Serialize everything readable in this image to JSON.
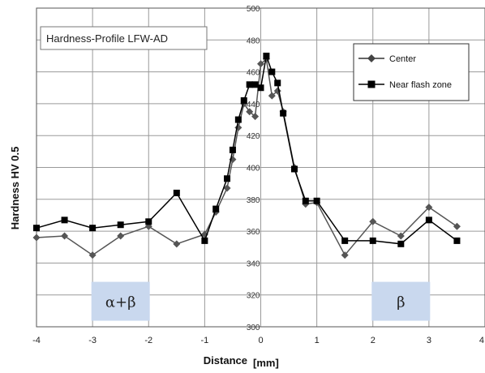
{
  "chart_data": {
    "type": "line",
    "title": "Hardness-Profile LFW-AD",
    "xlabel": "Distance",
    "xunit": "[mm]",
    "ylabel": "Hardness HV 0.5",
    "xlim": [
      -4,
      4
    ],
    "ylim": [
      300,
      500
    ],
    "xticks": [
      -4,
      -3,
      -2,
      -1,
      0,
      1,
      2,
      3,
      4
    ],
    "yticks": [
      300,
      320,
      340,
      360,
      380,
      400,
      420,
      440,
      460,
      480,
      500
    ],
    "grid": true,
    "legend_position": "top-right",
    "series": [
      {
        "name": "Center",
        "marker": "diamond",
        "color": "#555555",
        "points": [
          [
            -4,
            356
          ],
          [
            -3.5,
            357
          ],
          [
            -3,
            345
          ],
          [
            -2.5,
            357
          ],
          [
            -2,
            363
          ],
          [
            -1.5,
            352
          ],
          [
            -1,
            358
          ],
          [
            -0.8,
            372
          ],
          [
            -0.6,
            387
          ],
          [
            -0.5,
            405
          ],
          [
            -0.4,
            425
          ],
          [
            -0.3,
            440
          ],
          [
            -0.2,
            435
          ],
          [
            -0.1,
            432
          ],
          [
            0,
            465
          ],
          [
            0.1,
            468
          ],
          [
            0.2,
            445
          ],
          [
            0.3,
            448
          ],
          [
            0.4,
            435
          ],
          [
            0.6,
            400
          ],
          [
            0.8,
            377
          ],
          [
            1,
            378
          ],
          [
            1.5,
            345
          ],
          [
            2,
            366
          ],
          [
            2.5,
            357
          ],
          [
            3,
            375
          ],
          [
            3.5,
            363
          ]
        ]
      },
      {
        "name": "Near flash zone",
        "marker": "square",
        "color": "#000000",
        "points": [
          [
            -4,
            362
          ],
          [
            -3.5,
            367
          ],
          [
            -3,
            362
          ],
          [
            -2.5,
            364
          ],
          [
            -2,
            366
          ],
          [
            -1.5,
            384
          ],
          [
            -1,
            354
          ],
          [
            -0.8,
            374
          ],
          [
            -0.6,
            393
          ],
          [
            -0.5,
            411
          ],
          [
            -0.4,
            430
          ],
          [
            -0.3,
            442
          ],
          [
            -0.2,
            452
          ],
          [
            -0.1,
            452
          ],
          [
            0,
            450
          ],
          [
            0.1,
            470
          ],
          [
            0.2,
            460
          ],
          [
            0.3,
            453
          ],
          [
            0.4,
            434
          ],
          [
            0.6,
            399
          ],
          [
            0.8,
            379
          ],
          [
            1,
            379
          ],
          [
            1.5,
            354
          ],
          [
            2,
            354
          ],
          [
            2.5,
            352
          ],
          [
            3,
            367
          ],
          [
            3.5,
            354
          ]
        ]
      }
    ],
    "annotations": [
      {
        "text": "α+β",
        "x": -2.5,
        "y": 316
      },
      {
        "text": "β",
        "x": 2.5,
        "y": 316
      }
    ]
  }
}
